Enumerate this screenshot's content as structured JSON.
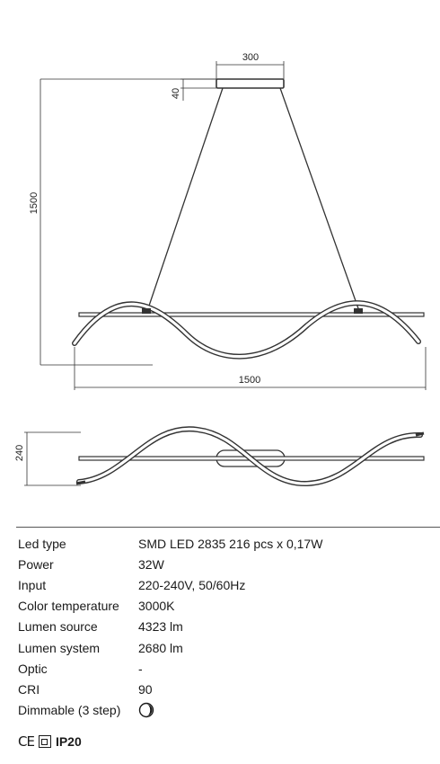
{
  "dimensions": {
    "canopy_width": "300",
    "canopy_height": "40",
    "total_height": "1500",
    "total_length": "1500",
    "side_height": "240"
  },
  "specs": [
    {
      "label": "Led type",
      "value": "SMD LED 2835 216 pcs x 0,17W"
    },
    {
      "label": "Power",
      "value": "32W"
    },
    {
      "label": "Input",
      "value": "220-240V, 50/60Hz"
    },
    {
      "label": "Color temperature",
      "value": "3000K"
    },
    {
      "label": "Lumen source",
      "value": "4323 lm"
    },
    {
      "label": "Lumen system",
      "value": "2680 lm"
    },
    {
      "label": "Optic",
      "value": "-"
    },
    {
      "label": "CRI",
      "value": "90"
    },
    {
      "label": "Dimmable (3 step)",
      "value": "",
      "icon": "dimmable-icon"
    }
  ],
  "certifications": {
    "ce": "CE",
    "class_icon": "double-insulation-icon",
    "ip": "IP20"
  }
}
